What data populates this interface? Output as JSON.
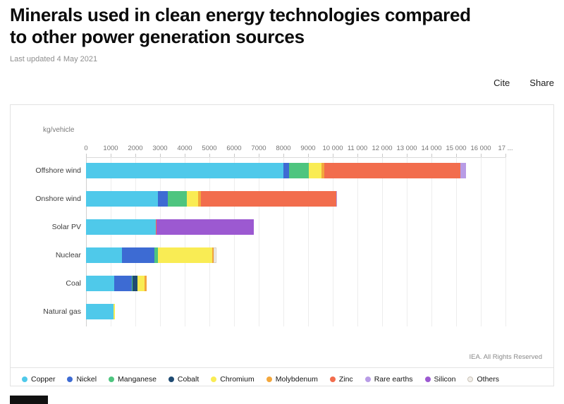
{
  "header": {
    "title": "Minerals used in clean energy technologies compared to other power generation sources",
    "last_updated": "Last updated 4 May 2021",
    "cite_label": "Cite",
    "share_label": "Share"
  },
  "chart": {
    "unit_label": "kg/vehicle",
    "attribution": "IEA. All Rights Reserved"
  },
  "chart_data": {
    "type": "bar",
    "orientation": "horizontal-stacked",
    "title": "Minerals used in clean energy technologies compared to other power generation sources",
    "unit": "kg/vehicle",
    "xlim": [
      0,
      17500
    ],
    "grid": true,
    "legend_position": "bottom",
    "x_tick_labels": [
      "0",
      "1000",
      "2000",
      "3000",
      "4000",
      "5000",
      "6000",
      "7000",
      "8000",
      "9000",
      "10 000",
      "11 000",
      "12 000",
      "13 000",
      "14 000",
      "15 000",
      "16 000",
      "17 ..."
    ],
    "categories": [
      "Offshore wind",
      "Onshore wind",
      "Solar PV",
      "Nuclear",
      "Coal",
      "Natural gas"
    ],
    "series": [
      {
        "name": "Copper",
        "color": "#4FC9EA",
        "values": [
          8000,
          2900,
          2820,
          1470,
          1150,
          1100
        ]
      },
      {
        "name": "Nickel",
        "color": "#3D6BD3",
        "values": [
          240,
          400,
          0,
          1300,
          720,
          20
        ]
      },
      {
        "name": "Manganese",
        "color": "#4EC57F",
        "values": [
          790,
          780,
          0,
          150,
          5,
          0
        ]
      },
      {
        "name": "Cobalt",
        "color": "#1F4B72",
        "values": [
          0,
          0,
          0,
          0,
          200,
          0
        ]
      },
      {
        "name": "Chromium",
        "color": "#F9EC54",
        "values": [
          525,
          470,
          0,
          2190,
          310,
          50
        ]
      },
      {
        "name": "Molybdenum",
        "color": "#F3A73C",
        "values": [
          110,
          100,
          0,
          70,
          65,
          0
        ]
      },
      {
        "name": "Zinc",
        "color": "#F26D4D",
        "values": [
          5500,
          5500,
          30,
          0,
          0,
          0
        ]
      },
      {
        "name": "Rare earths",
        "color": "#B89CE6",
        "values": [
          240,
          15,
          0,
          0,
          0,
          0
        ]
      },
      {
        "name": "Silicon",
        "color": "#9C59D1",
        "values": [
          0,
          0,
          3950,
          0,
          0,
          0
        ]
      },
      {
        "name": "Others",
        "color": "#F1EEE9",
        "ring": true,
        "values": [
          0,
          0,
          0,
          100,
          0,
          0
        ]
      }
    ]
  }
}
